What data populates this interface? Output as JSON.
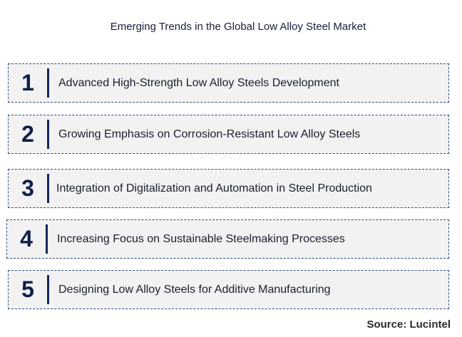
{
  "title": "Emerging Trends in the Global Low Alloy Steel Market",
  "trends": [
    {
      "number": "1",
      "text": "Advanced High-Strength Low Alloy Steels Development"
    },
    {
      "number": "2",
      "text": "Growing Emphasis on Corrosion-Resistant Low Alloy Steels"
    },
    {
      "number": "3",
      "text": "Integration of Digitalization and Automation in Steel Production"
    },
    {
      "number": "4",
      "text": "Increasing Focus on Sustainable Steelmaking Processes"
    },
    {
      "number": "5",
      "text": "Designing Low Alloy Steels for Additive Manufacturing"
    }
  ],
  "source": "Source: Lucintel",
  "colors": {
    "border": "#2e4d80",
    "box_fill": "#f2f2f2",
    "number": "#0f1f4a",
    "divider": "#13275a"
  }
}
